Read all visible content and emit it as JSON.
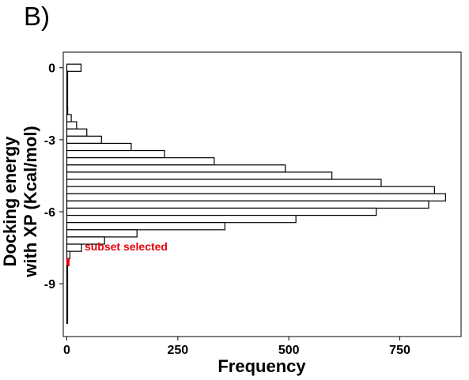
{
  "panel_label": "B)",
  "chart_data": {
    "type": "bar",
    "orientation": "horizontal",
    "xlabel": "Frequency",
    "ylabel": [
      "Docking energy",
      "with XP (Kcal/mol)"
    ],
    "xlim": [
      -8,
      888
    ],
    "ylim": [
      -11.2,
      0.65
    ],
    "xticks": [
      0,
      250,
      500,
      750
    ],
    "yticks": [
      0,
      -3,
      -6,
      -9
    ],
    "bin_width": 0.3,
    "bins": [
      {
        "y": 0.0,
        "count": 32
      },
      {
        "y": -0.3,
        "count": 1
      },
      {
        "y": -0.6,
        "count": 1
      },
      {
        "y": -0.9,
        "count": 1
      },
      {
        "y": -1.2,
        "count": 1
      },
      {
        "y": -1.5,
        "count": 1
      },
      {
        "y": -1.8,
        "count": 2
      },
      {
        "y": -2.1,
        "count": 10
      },
      {
        "y": -2.4,
        "count": 22
      },
      {
        "y": -2.7,
        "count": 45
      },
      {
        "y": -3.0,
        "count": 78
      },
      {
        "y": -3.3,
        "count": 145
      },
      {
        "y": -3.6,
        "count": 220
      },
      {
        "y": -3.9,
        "count": 332
      },
      {
        "y": -4.2,
        "count": 492
      },
      {
        "y": -4.5,
        "count": 597
      },
      {
        "y": -4.8,
        "count": 708
      },
      {
        "y": -5.1,
        "count": 828
      },
      {
        "y": -5.4,
        "count": 853
      },
      {
        "y": -5.7,
        "count": 815
      },
      {
        "y": -6.0,
        "count": 697
      },
      {
        "y": -6.3,
        "count": 516
      },
      {
        "y": -6.6,
        "count": 356
      },
      {
        "y": -6.9,
        "count": 158
      },
      {
        "y": -7.2,
        "count": 85
      },
      {
        "y": -7.5,
        "count": 33
      },
      {
        "y": -7.8,
        "count": 7
      },
      {
        "y": -8.1,
        "count": 5,
        "highlight": true
      },
      {
        "y": -8.4,
        "count": 1
      },
      {
        "y": -8.7,
        "count": 1
      },
      {
        "y": -9.0,
        "count": 1
      },
      {
        "y": -9.3,
        "count": 1
      },
      {
        "y": -9.6,
        "count": 1
      },
      {
        "y": -9.9,
        "count": 1
      },
      {
        "y": -10.2,
        "count": 1
      },
      {
        "y": -10.5,
        "count": 1
      }
    ],
    "annotation": {
      "text": "subset selected",
      "color": "#e8000b",
      "x": 40,
      "y": -7.45
    },
    "colors": {
      "bar_fill": "#ffffff",
      "bar_stroke": "#000000",
      "highlight": "#e8000b"
    },
    "grid": false,
    "legend": "none"
  }
}
